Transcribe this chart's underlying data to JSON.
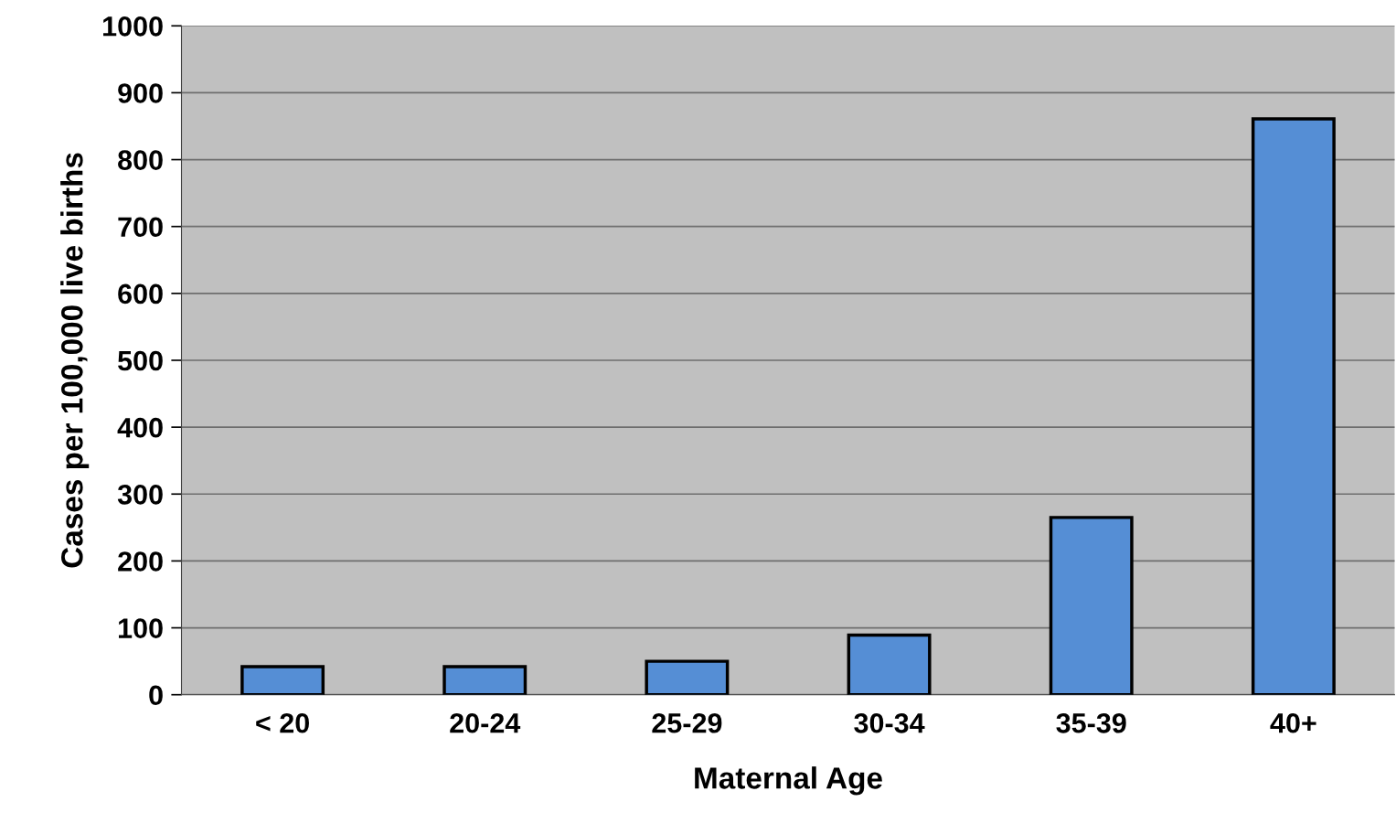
{
  "chart_data": {
    "type": "bar",
    "xlabel": "Maternal Age",
    "ylabel": "Cases per 100,000 live births",
    "categories": [
      "< 20",
      "20-24",
      "25-29",
      "30-34",
      "35-39",
      "40+"
    ],
    "values": [
      42,
      42,
      50,
      89,
      265,
      861
    ],
    "color": "#558ed5",
    "ylim": [
      0,
      1000
    ],
    "yticks": [
      0,
      100,
      200,
      300,
      400,
      500,
      600,
      700,
      800,
      900,
      1000
    ],
    "grid": "y"
  }
}
